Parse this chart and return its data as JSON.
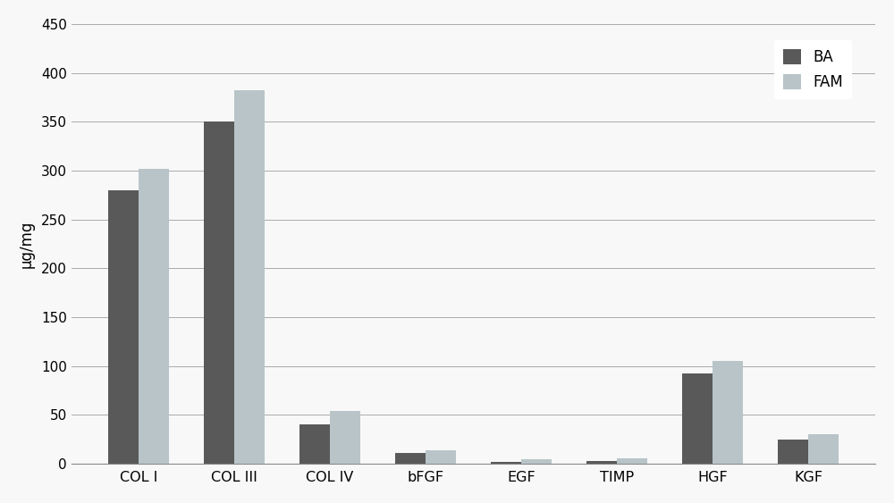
{
  "categories": [
    "COL I",
    "COL III",
    "COL IV",
    "bFGF",
    "EGF",
    "TIMP",
    "HGF",
    "KGF"
  ],
  "cat_labels": [
    "COL I",
    "COL III",
    "COL IV",
    "bFGF",
    "EGF",
    "TIMP",
    "HGF",
    "KGF"
  ],
  "BA_values": [
    280,
    350,
    40,
    11,
    2,
    3,
    92,
    25
  ],
  "FAM_values": [
    302,
    382,
    54,
    14,
    4,
    5,
    105,
    30
  ],
  "bar_color_BA": "#595959",
  "bar_color_FAM": "#b8c4c8",
  "ylabel": "μg/mg",
  "ylim": [
    0,
    450
  ],
  "yticks": [
    0,
    50,
    100,
    150,
    200,
    250,
    300,
    350,
    400,
    450
  ],
  "legend_labels": [
    "BA",
    "FAM"
  ],
  "background_color": "#f8f8f8",
  "grid_color": "#aaaaaa",
  "bar_width": 0.32,
  "title": ""
}
